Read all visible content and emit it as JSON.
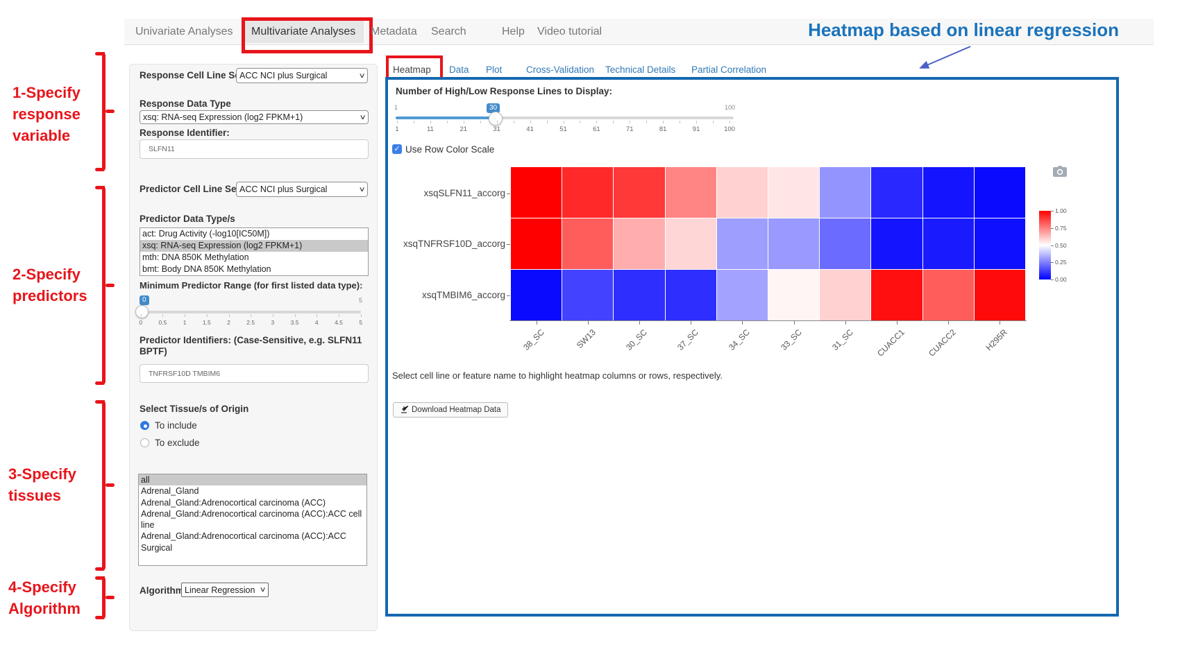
{
  "nav": {
    "items": [
      {
        "label": "Univariate Analyses",
        "active": false
      },
      {
        "label": "Multivariate Analyses",
        "active": true
      },
      {
        "label": "Metadata",
        "active": false
      },
      {
        "label": "Search",
        "active": false
      },
      {
        "label": "Help",
        "active": false
      },
      {
        "label": "Video tutorial",
        "active": false
      }
    ]
  },
  "annotations": {
    "blue_title": "Heatmap based on linear regression",
    "steps": [
      {
        "lines": "1-Specify\nresponse\nvariable"
      },
      {
        "lines": "2-Specify\npredictors"
      },
      {
        "lines": "3-Specify\n tissues"
      },
      {
        "lines": "4-Specify\n Algorithm"
      }
    ],
    "red_color": "#e8151b",
    "blue_color": "#1a73bb"
  },
  "sidebar": {
    "response_cell_line_set": {
      "label": "Response Cell Line Set",
      "value": "ACC NCI plus Surgical"
    },
    "response_data_type": {
      "label": "Response Data Type",
      "value": "xsq: RNA-seq Expression (log2 FPKM+1)"
    },
    "response_identifier": {
      "label": "Response Identifier:",
      "value": "SLFN11"
    },
    "predictor_cell_line_set": {
      "label": "Predictor Cell Line Set",
      "value": "ACC NCI plus Surgical"
    },
    "predictor_data_types": {
      "label": "Predictor Data Type/s",
      "options": [
        "act: Drug Activity (-log10[IC50M])",
        "xsq: RNA-seq Expression (log2 FPKM+1)",
        "mth: DNA 850K Methylation",
        "bmt: Body DNA 850K Methylation"
      ],
      "selected_index": 1
    },
    "min_predictor_range": {
      "label": "Minimum Predictor Range (for first listed data type):",
      "value": "0",
      "max_label": "5",
      "ticks": [
        "0",
        "0.5",
        "1",
        "1.5",
        "2",
        "2.5",
        "3",
        "3.5",
        "4",
        "4.5",
        "5"
      ]
    },
    "predictor_identifiers": {
      "label": "Predictor Identifiers: (Case-Sensitive, e.g. SLFN11 BPTF)",
      "value": "TNFRSF10D TMBIM6"
    },
    "tissues": {
      "label": "Select Tissue/s of Origin",
      "radios": [
        {
          "label": "To include",
          "checked": true
        },
        {
          "label": "To exclude",
          "checked": false
        }
      ],
      "options": [
        "all",
        "Adrenal_Gland",
        "Adrenal_Gland:Adrenocortical carcinoma (ACC)",
        "Adrenal_Gland:Adrenocortical carcinoma (ACC):ACC cell line",
        "Adrenal_Gland:Adrenocortical carcinoma (ACC):ACC Surgical"
      ],
      "selected_index": 0
    },
    "algorithm": {
      "label": "Algorithm",
      "value": "Linear Regression"
    }
  },
  "panel": {
    "tabs": [
      {
        "label": "Heatmap",
        "active": true
      },
      {
        "label": "Data",
        "active": false
      },
      {
        "label": "Plot",
        "active": false
      },
      {
        "label": "Cross-Validation",
        "active": false
      },
      {
        "label": "Technical Details",
        "active": false
      },
      {
        "label": "Partial Correlation",
        "active": false
      }
    ],
    "slider": {
      "label": "Number of High/Low Response Lines to Display:",
      "value": "30",
      "min": "1",
      "max": "100",
      "ticks": [
        "1",
        "11",
        "21",
        "31",
        "41",
        "51",
        "61",
        "71",
        "81",
        "91",
        "100"
      ]
    },
    "row_color_scale": {
      "label": "Use Row Color Scale",
      "checked": true
    },
    "hint": "Select cell line or feature name to highlight heatmap columns or rows, respectively.",
    "download_button": "Download Heatmap Data"
  },
  "chart_data": {
    "type": "heatmap",
    "title": "",
    "columns": [
      "38_SC",
      "SW13",
      "30_SC",
      "37_SC",
      "34_SC",
      "33_SC",
      "31_SC",
      "CUACC1",
      "CUACC2",
      "H295R"
    ],
    "rows": [
      "xsqSLFN11_accorg",
      "xsqTNFRSF10D_accorg",
      "xsqTMBIM6_accorg"
    ],
    "values": [
      [
        1.0,
        0.92,
        0.89,
        0.74,
        0.59,
        0.55,
        0.29,
        0.08,
        0.04,
        0.02
      ],
      [
        1.0,
        0.82,
        0.66,
        0.58,
        0.31,
        0.3,
        0.21,
        0.04,
        0.05,
        0.03
      ],
      [
        0.02,
        0.13,
        0.09,
        0.09,
        0.32,
        0.52,
        0.59,
        0.97,
        0.82,
        0.98
      ]
    ],
    "colorscale": {
      "low": "#0000ff",
      "mid": "#ffffff",
      "high": "#ff0000"
    },
    "colorbar_ticks": [
      "1.00",
      "0.75",
      "0.50",
      "0.25",
      "0.00"
    ],
    "legend_position": "right",
    "grid": false
  }
}
